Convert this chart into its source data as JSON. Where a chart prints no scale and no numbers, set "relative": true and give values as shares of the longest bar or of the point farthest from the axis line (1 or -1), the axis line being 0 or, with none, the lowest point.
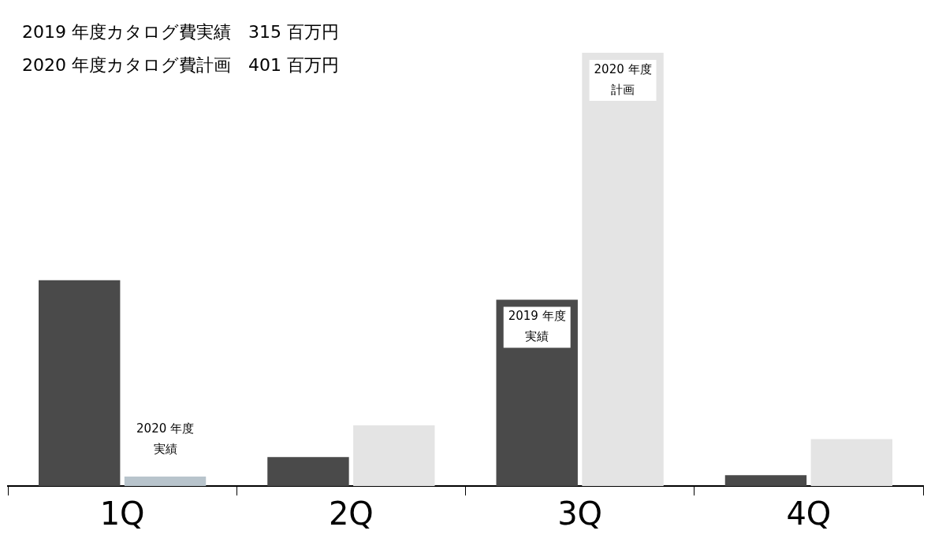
{
  "chart_data": {
    "type": "bar",
    "relative": true,
    "categories": [
      "1Q",
      "2Q",
      "3Q",
      "4Q"
    ],
    "series": [
      {
        "color": "#4a4a4a",
        "values": [
          0.475,
          0.067,
          0.43,
          0.025
        ]
      },
      {
        "colors": [
          "#b8c4cc",
          "#e4e4e4",
          "#e4e4e4",
          "#e4e4e4"
        ],
        "values": [
          0.022,
          0.14,
          1,
          0.108
        ]
      }
    ],
    "annotations": [
      "2019 年度カタログ費実績　315 百万円",
      "2020 年度カタログ費計画　401 百万円",
      {
        "text": "2019 年度実績",
        "x": "3Q",
        "y": 0.43
      },
      {
        "text": "2020 年度計画",
        "x": "3Q",
        "y": 1
      },
      {
        "text": "2020 年度実績",
        "x": "1Q",
        "y": 0.022
      }
    ]
  }
}
